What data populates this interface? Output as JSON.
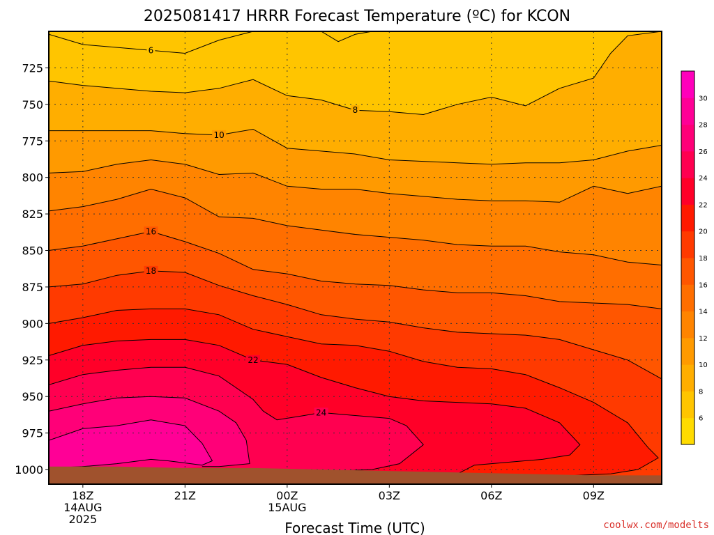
{
  "chart_data": {
    "type": "heatmap",
    "title": "2025081417 HRRR Forecast Temperature (ºC) for KCON",
    "xlabel": "Forecast Time (UTC)",
    "ylabel": "",
    "credit": "coolwx.com/modelts",
    "x_ticks": [
      {
        "hour": 1,
        "lines": [
          "18Z",
          "14AUG",
          "2025"
        ]
      },
      {
        "hour": 4,
        "lines": [
          "21Z"
        ]
      },
      {
        "hour": 7,
        "lines": [
          "00Z",
          "15AUG"
        ]
      },
      {
        "hour": 10,
        "lines": [
          "03Z"
        ]
      },
      {
        "hour": 13,
        "lines": [
          "06Z"
        ]
      },
      {
        "hour": 16,
        "lines": [
          "09Z"
        ]
      }
    ],
    "xlim": [
      0,
      18
    ],
    "y_ticks": [
      725,
      750,
      775,
      800,
      825,
      850,
      875,
      900,
      925,
      950,
      975,
      1000
    ],
    "ylim": [
      1010,
      700
    ],
    "grid": true,
    "colorbar": {
      "ticks": [
        6,
        8,
        10,
        12,
        14,
        16,
        18,
        20,
        22,
        24,
        26,
        28,
        30
      ],
      "range": [
        4,
        32
      ],
      "colors": [
        "#ffdb00",
        "#ffc500",
        "#ffae00",
        "#ff9a00",
        "#ff8400",
        "#ff6e00",
        "#ff5600",
        "#ff3a00",
        "#ff1a00",
        "#ff0028",
        "#ff0050",
        "#ff0078",
        "#ff0096",
        "#ff00bb"
      ]
    },
    "levels": [
      6,
      8,
      10,
      12,
      14,
      16,
      18,
      20,
      22,
      24,
      26
    ],
    "contours": [
      {
        "level": 6,
        "label": "6",
        "label_hour": 3,
        "points": [
          [
            0,
            702
          ],
          [
            1,
            709
          ],
          [
            3,
            713
          ],
          [
            4,
            715
          ],
          [
            5,
            706
          ],
          [
            6,
            700
          ]
        ]
      },
      {
        "level": 6,
        "label": "",
        "label_hour": null,
        "points": [
          [
            8,
            700
          ],
          [
            8.5,
            707
          ],
          [
            9,
            702
          ],
          [
            9.5,
            700
          ]
        ]
      },
      {
        "level": 8,
        "label": "8",
        "label_hour": 9,
        "points": [
          [
            0,
            734
          ],
          [
            1,
            737
          ],
          [
            3,
            741
          ],
          [
            4,
            742
          ],
          [
            5,
            739
          ],
          [
            6,
            733
          ],
          [
            7,
            744
          ],
          [
            8,
            747
          ],
          [
            9,
            754
          ],
          [
            10,
            755
          ],
          [
            11,
            757
          ],
          [
            12,
            750
          ],
          [
            13,
            745
          ],
          [
            14,
            751
          ],
          [
            15,
            739
          ],
          [
            16,
            732
          ],
          [
            16.5,
            715
          ],
          [
            17,
            703
          ],
          [
            18,
            700
          ]
        ]
      },
      {
        "level": 10,
        "label": "10",
        "label_hour": 5,
        "points": [
          [
            0,
            768
          ],
          [
            1,
            768
          ],
          [
            3,
            768
          ],
          [
            4,
            770
          ],
          [
            5,
            771
          ],
          [
            6,
            767
          ],
          [
            7,
            780
          ],
          [
            8,
            782
          ],
          [
            9,
            784
          ],
          [
            10,
            788
          ],
          [
            11,
            789
          ],
          [
            12,
            790
          ],
          [
            13,
            791
          ],
          [
            14,
            790
          ],
          [
            15,
            790
          ],
          [
            16,
            788
          ],
          [
            17,
            782
          ],
          [
            18,
            778
          ]
        ]
      },
      {
        "level": 12,
        "label": "",
        "label_hour": null,
        "points": [
          [
            0,
            797
          ],
          [
            1,
            796
          ],
          [
            2,
            791
          ],
          [
            3,
            788
          ],
          [
            4,
            791
          ],
          [
            5,
            798
          ],
          [
            6,
            797
          ],
          [
            7,
            806
          ],
          [
            8,
            808
          ],
          [
            9,
            808
          ],
          [
            10,
            811
          ],
          [
            11,
            813
          ],
          [
            12,
            815
          ],
          [
            13,
            816
          ],
          [
            14,
            816
          ],
          [
            15,
            817
          ],
          [
            16,
            806
          ],
          [
            17,
            811
          ],
          [
            18,
            806
          ]
        ]
      },
      {
        "level": 14,
        "label": "",
        "label_hour": null,
        "points": [
          [
            0,
            823
          ],
          [
            1,
            820
          ],
          [
            2,
            815
          ],
          [
            3,
            808
          ],
          [
            4,
            814
          ],
          [
            5,
            827
          ],
          [
            6,
            828
          ],
          [
            7,
            833
          ],
          [
            8,
            836
          ],
          [
            9,
            839
          ],
          [
            10,
            841
          ],
          [
            11,
            843
          ],
          [
            12,
            846
          ],
          [
            13,
            847
          ],
          [
            14,
            847
          ],
          [
            15,
            851
          ],
          [
            16,
            853
          ],
          [
            17,
            858
          ],
          [
            18,
            860
          ]
        ]
      },
      {
        "level": 16,
        "label": "16",
        "label_hour": 3,
        "points": [
          [
            0,
            850
          ],
          [
            1,
            847
          ],
          [
            2,
            842
          ],
          [
            3,
            837
          ],
          [
            4,
            844
          ],
          [
            5,
            852
          ],
          [
            6,
            863
          ],
          [
            7,
            866
          ],
          [
            8,
            871
          ],
          [
            9,
            873
          ],
          [
            10,
            874
          ],
          [
            11,
            877
          ],
          [
            12,
            879
          ],
          [
            13,
            879
          ],
          [
            14,
            881
          ],
          [
            15,
            885
          ],
          [
            16,
            886
          ],
          [
            17,
            887
          ],
          [
            18,
            890
          ]
        ]
      },
      {
        "level": 18,
        "label": "18",
        "label_hour": 3,
        "points": [
          [
            0,
            875
          ],
          [
            1,
            873
          ],
          [
            2,
            867
          ],
          [
            3,
            864
          ],
          [
            4,
            865
          ],
          [
            5,
            874
          ],
          [
            6,
            881
          ],
          [
            7,
            887
          ],
          [
            8,
            894
          ],
          [
            9,
            897
          ],
          [
            10,
            899
          ],
          [
            11,
            903
          ],
          [
            12,
            906
          ],
          [
            13,
            907
          ],
          [
            14,
            908
          ],
          [
            15,
            911
          ],
          [
            16,
            918
          ],
          [
            17,
            925
          ],
          [
            18,
            938
          ]
        ]
      },
      {
        "level": 20,
        "label": "",
        "label_hour": null,
        "points": [
          [
            0,
            900
          ],
          [
            1,
            896
          ],
          [
            2,
            891
          ],
          [
            3,
            890
          ],
          [
            4,
            890
          ],
          [
            5,
            894
          ],
          [
            6,
            904
          ],
          [
            7,
            909
          ],
          [
            8,
            914
          ],
          [
            9,
            915
          ],
          [
            10,
            919
          ],
          [
            11,
            926
          ],
          [
            12,
            930
          ],
          [
            13,
            931
          ],
          [
            14,
            935
          ],
          [
            15,
            944
          ],
          [
            16,
            954
          ],
          [
            17,
            968
          ],
          [
            17.6,
            985
          ],
          [
            17.9,
            992
          ],
          [
            17.3,
            1000
          ],
          [
            16.5,
            1003
          ],
          [
            15.5,
            1004
          ],
          [
            14.5,
            1005
          ],
          [
            13,
            1006
          ],
          [
            12,
            1007
          ]
        ]
      },
      {
        "level": 22,
        "label": "22",
        "label_hour": 6,
        "points": [
          [
            0,
            922
          ],
          [
            1,
            915
          ],
          [
            2,
            912
          ],
          [
            3,
            911
          ],
          [
            4,
            911
          ],
          [
            5,
            915
          ],
          [
            6,
            925
          ],
          [
            7,
            928
          ],
          [
            8,
            937
          ],
          [
            9,
            944
          ],
          [
            10,
            950
          ],
          [
            11,
            953
          ],
          [
            12,
            954
          ],
          [
            13,
            955
          ],
          [
            14,
            958
          ],
          [
            15,
            968
          ],
          [
            15.6,
            983
          ],
          [
            15.3,
            990
          ],
          [
            14.5,
            993
          ],
          [
            13.5,
            995
          ],
          [
            12.5,
            997
          ],
          [
            12,
            1003
          ],
          [
            11,
            1004
          ],
          [
            9.5,
            1003
          ],
          [
            8,
            1002
          ],
          [
            7,
            1001
          ]
        ]
      },
      {
        "level": 24,
        "label": "24",
        "label_hour": 8,
        "points": [
          [
            0,
            942
          ],
          [
            1,
            935
          ],
          [
            2,
            932
          ],
          [
            3,
            930
          ],
          [
            4,
            930
          ],
          [
            5,
            936
          ],
          [
            6,
            952
          ],
          [
            6.3,
            960
          ],
          [
            6.7,
            966
          ],
          [
            7.5,
            963
          ],
          [
            8,
            961
          ],
          [
            9,
            963
          ],
          [
            10,
            965
          ],
          [
            10.5,
            970
          ],
          [
            11,
            983
          ],
          [
            10.3,
            996
          ],
          [
            9.5,
            1000
          ],
          [
            8.5,
            1001
          ],
          [
            7.5,
            1002
          ],
          [
            6,
            1001
          ]
        ]
      },
      {
        "level": 26,
        "label": "",
        "label_hour": null,
        "points": [
          [
            0,
            960
          ],
          [
            1,
            955
          ],
          [
            2,
            951
          ],
          [
            3,
            950
          ],
          [
            4,
            951
          ],
          [
            5,
            960
          ],
          [
            5.5,
            968
          ],
          [
            5.8,
            980
          ],
          [
            5.9,
            996
          ],
          [
            5,
            998
          ],
          [
            4.5,
            998
          ]
        ]
      },
      {
        "level": 28,
        "label": "",
        "label_hour": null,
        "points": [
          [
            0,
            980
          ],
          [
            1,
            972
          ],
          [
            2,
            970
          ],
          [
            3,
            966
          ],
          [
            4,
            970
          ],
          [
            4.5,
            982
          ],
          [
            4.8,
            994
          ],
          [
            4.5,
            997
          ],
          [
            3.5,
            994
          ],
          [
            3,
            993
          ],
          [
            2,
            996
          ],
          [
            1,
            998
          ],
          [
            0,
            999
          ]
        ]
      }
    ],
    "ground": {
      "color": "#a0522d",
      "points": [
        [
          0,
          998
        ],
        [
          2,
          998
        ],
        [
          4,
          999
        ],
        [
          6,
          999
        ],
        [
          8,
          1000
        ],
        [
          10,
          1001
        ],
        [
          12,
          1002
        ],
        [
          14,
          1003
        ],
        [
          16,
          1004
        ],
        [
          18,
          1004
        ]
      ]
    }
  }
}
